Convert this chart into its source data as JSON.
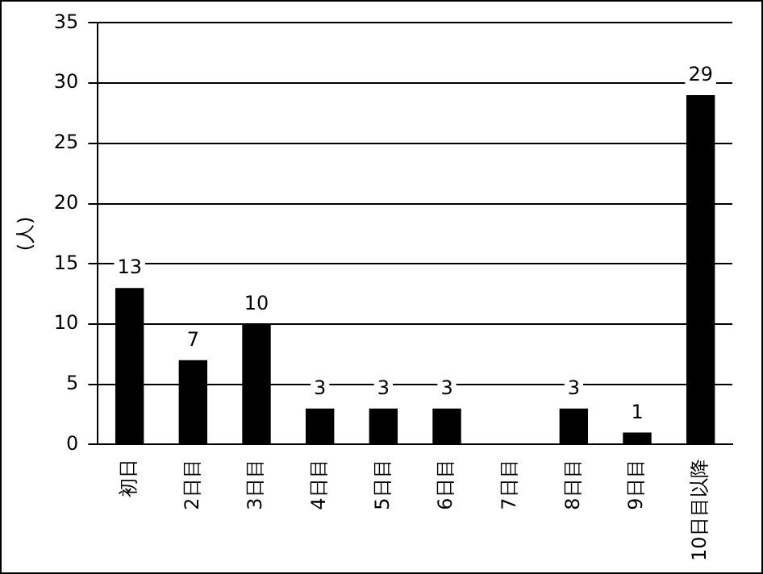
{
  "chart_data": {
    "type": "bar",
    "ylabel": "(人)",
    "categories": [
      "初日",
      "2日目",
      "3日目",
      "4日目",
      "5日目",
      "6日目",
      "7日目",
      "8日目",
      "9日目",
      "10日目以降"
    ],
    "values": [
      13,
      7,
      10,
      3,
      3,
      3,
      0,
      3,
      1,
      29
    ],
    "value_labels": [
      "13",
      "7",
      "10",
      "3",
      "3",
      "3",
      null,
      "3",
      "1",
      "29"
    ],
    "color": "#000000",
    "ylim": [
      0,
      35
    ],
    "yticks": [
      0,
      5,
      10,
      15,
      20,
      25,
      30,
      35
    ],
    "grid": "y",
    "legend": false
  }
}
